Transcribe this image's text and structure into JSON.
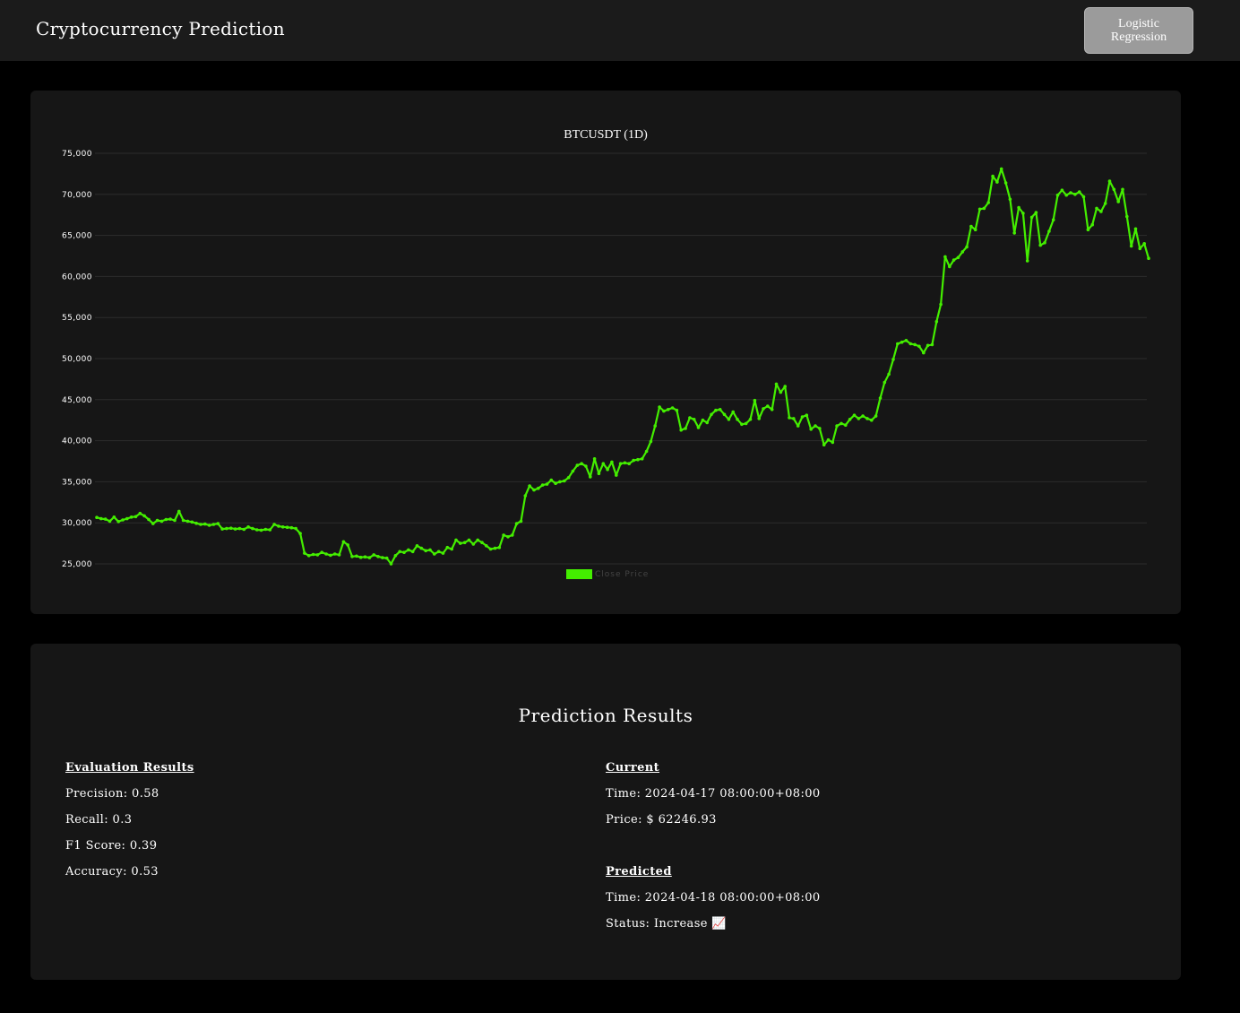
{
  "header": {
    "title": "Cryptocurrency Prediction",
    "model_button_label": "Logistic Regression"
  },
  "colors": {
    "page_background": "#000000",
    "panel_background": "#161616",
    "header_background": "#1b1b1b",
    "button_background": "#9b9b9b",
    "series_color": "#44ee00"
  },
  "chart_data": {
    "type": "line",
    "title": "BTCUSDT (1D)",
    "xlabel": "",
    "ylabel": "",
    "ylim": [
      25000,
      75000
    ],
    "yticks": [
      "25,000",
      "30,000",
      "35,000",
      "40,000",
      "45,000",
      "50,000",
      "55,000",
      "60,000",
      "65,000",
      "70,000",
      "75,000"
    ],
    "grid": true,
    "legend_position": "bottom",
    "series": [
      {
        "name": "Close Price",
        "color": "#44ee00",
        "values": [
          30650,
          30500,
          30450,
          30200,
          30700,
          30150,
          30350,
          30500,
          30700,
          30750,
          31150,
          30850,
          30400,
          29900,
          30300,
          30200,
          30400,
          30450,
          30300,
          31400,
          30300,
          30200,
          30100,
          29950,
          29800,
          29850,
          29700,
          29800,
          29900,
          29250,
          29300,
          29350,
          29250,
          29300,
          29200,
          29500,
          29300,
          29150,
          29100,
          29200,
          29150,
          29800,
          29600,
          29500,
          29450,
          29400,
          29300,
          28700,
          26300,
          26000,
          26150,
          26100,
          26400,
          26200,
          26050,
          26200,
          26100,
          27700,
          27300,
          25900,
          25950,
          25800,
          25850,
          25750,
          26100,
          25900,
          25750,
          25700,
          25000,
          26000,
          26500,
          26400,
          26700,
          26500,
          27200,
          26900,
          26600,
          26700,
          26200,
          26500,
          26300,
          27000,
          26800,
          27900,
          27500,
          27600,
          27900,
          27400,
          27900,
          27600,
          27200,
          26800,
          26900,
          27000,
          28500,
          28300,
          28500,
          29900,
          30200,
          33300,
          34500,
          34000,
          34200,
          34600,
          34700,
          35200,
          34800,
          35000,
          35100,
          35500,
          36300,
          37000,
          37200,
          36900,
          35600,
          37800,
          36000,
          37200,
          36500,
          37400,
          35800,
          37200,
          37300,
          37200,
          37600,
          37700,
          37800,
          38700,
          39900,
          41800,
          44100,
          43600,
          43800,
          44000,
          43700,
          41300,
          41500,
          42800,
          42600,
          41600,
          42500,
          42200,
          43200,
          43700,
          43800,
          43200,
          42600,
          43500,
          42600,
          42000,
          42100,
          42600,
          44900,
          42700,
          43900,
          44200,
          43800,
          46900,
          45900,
          46600,
          42800,
          42700,
          41800,
          42900,
          43100,
          41400,
          41800,
          41500,
          39500,
          40100,
          39800,
          41800,
          42100,
          41900,
          42600,
          43100,
          42700,
          43000,
          42700,
          42500,
          43000,
          45200,
          47100,
          48100,
          49900,
          51800,
          52000,
          52200,
          51800,
          51700,
          51500,
          50700,
          51600,
          51700,
          54500,
          56600,
          62400,
          61200,
          62000,
          62300,
          63000,
          63600,
          66100,
          65700,
          68200,
          68300,
          69000,
          72200,
          71500,
          73100,
          71400,
          69400,
          65300,
          68400,
          67700,
          61900,
          67200,
          67800,
          63800,
          64100,
          65500,
          66900,
          69900,
          70500,
          69900,
          70200,
          70000,
          70300,
          69700,
          65700,
          66300,
          68300,
          67900,
          68900,
          71600,
          70600,
          69100,
          70600,
          67300,
          63700,
          65800,
          63400,
          64000,
          62200
        ]
      }
    ]
  },
  "results": {
    "title": "Prediction Results",
    "evaluation": {
      "heading": "Evaluation Results",
      "precision": "Precision: 0.58",
      "recall": "Recall: 0.3",
      "f1": "F1 Score: 0.39",
      "accuracy": "Accuracy: 0.53"
    },
    "current": {
      "heading": "Current",
      "time": "Time: 2024-04-17 08:00:00+08:00",
      "price": "Price: $ 62246.93"
    },
    "predicted": {
      "heading": "Predicted",
      "time": "Time: 2024-04-18 08:00:00+08:00",
      "status": "Status: Increase 📈"
    }
  }
}
